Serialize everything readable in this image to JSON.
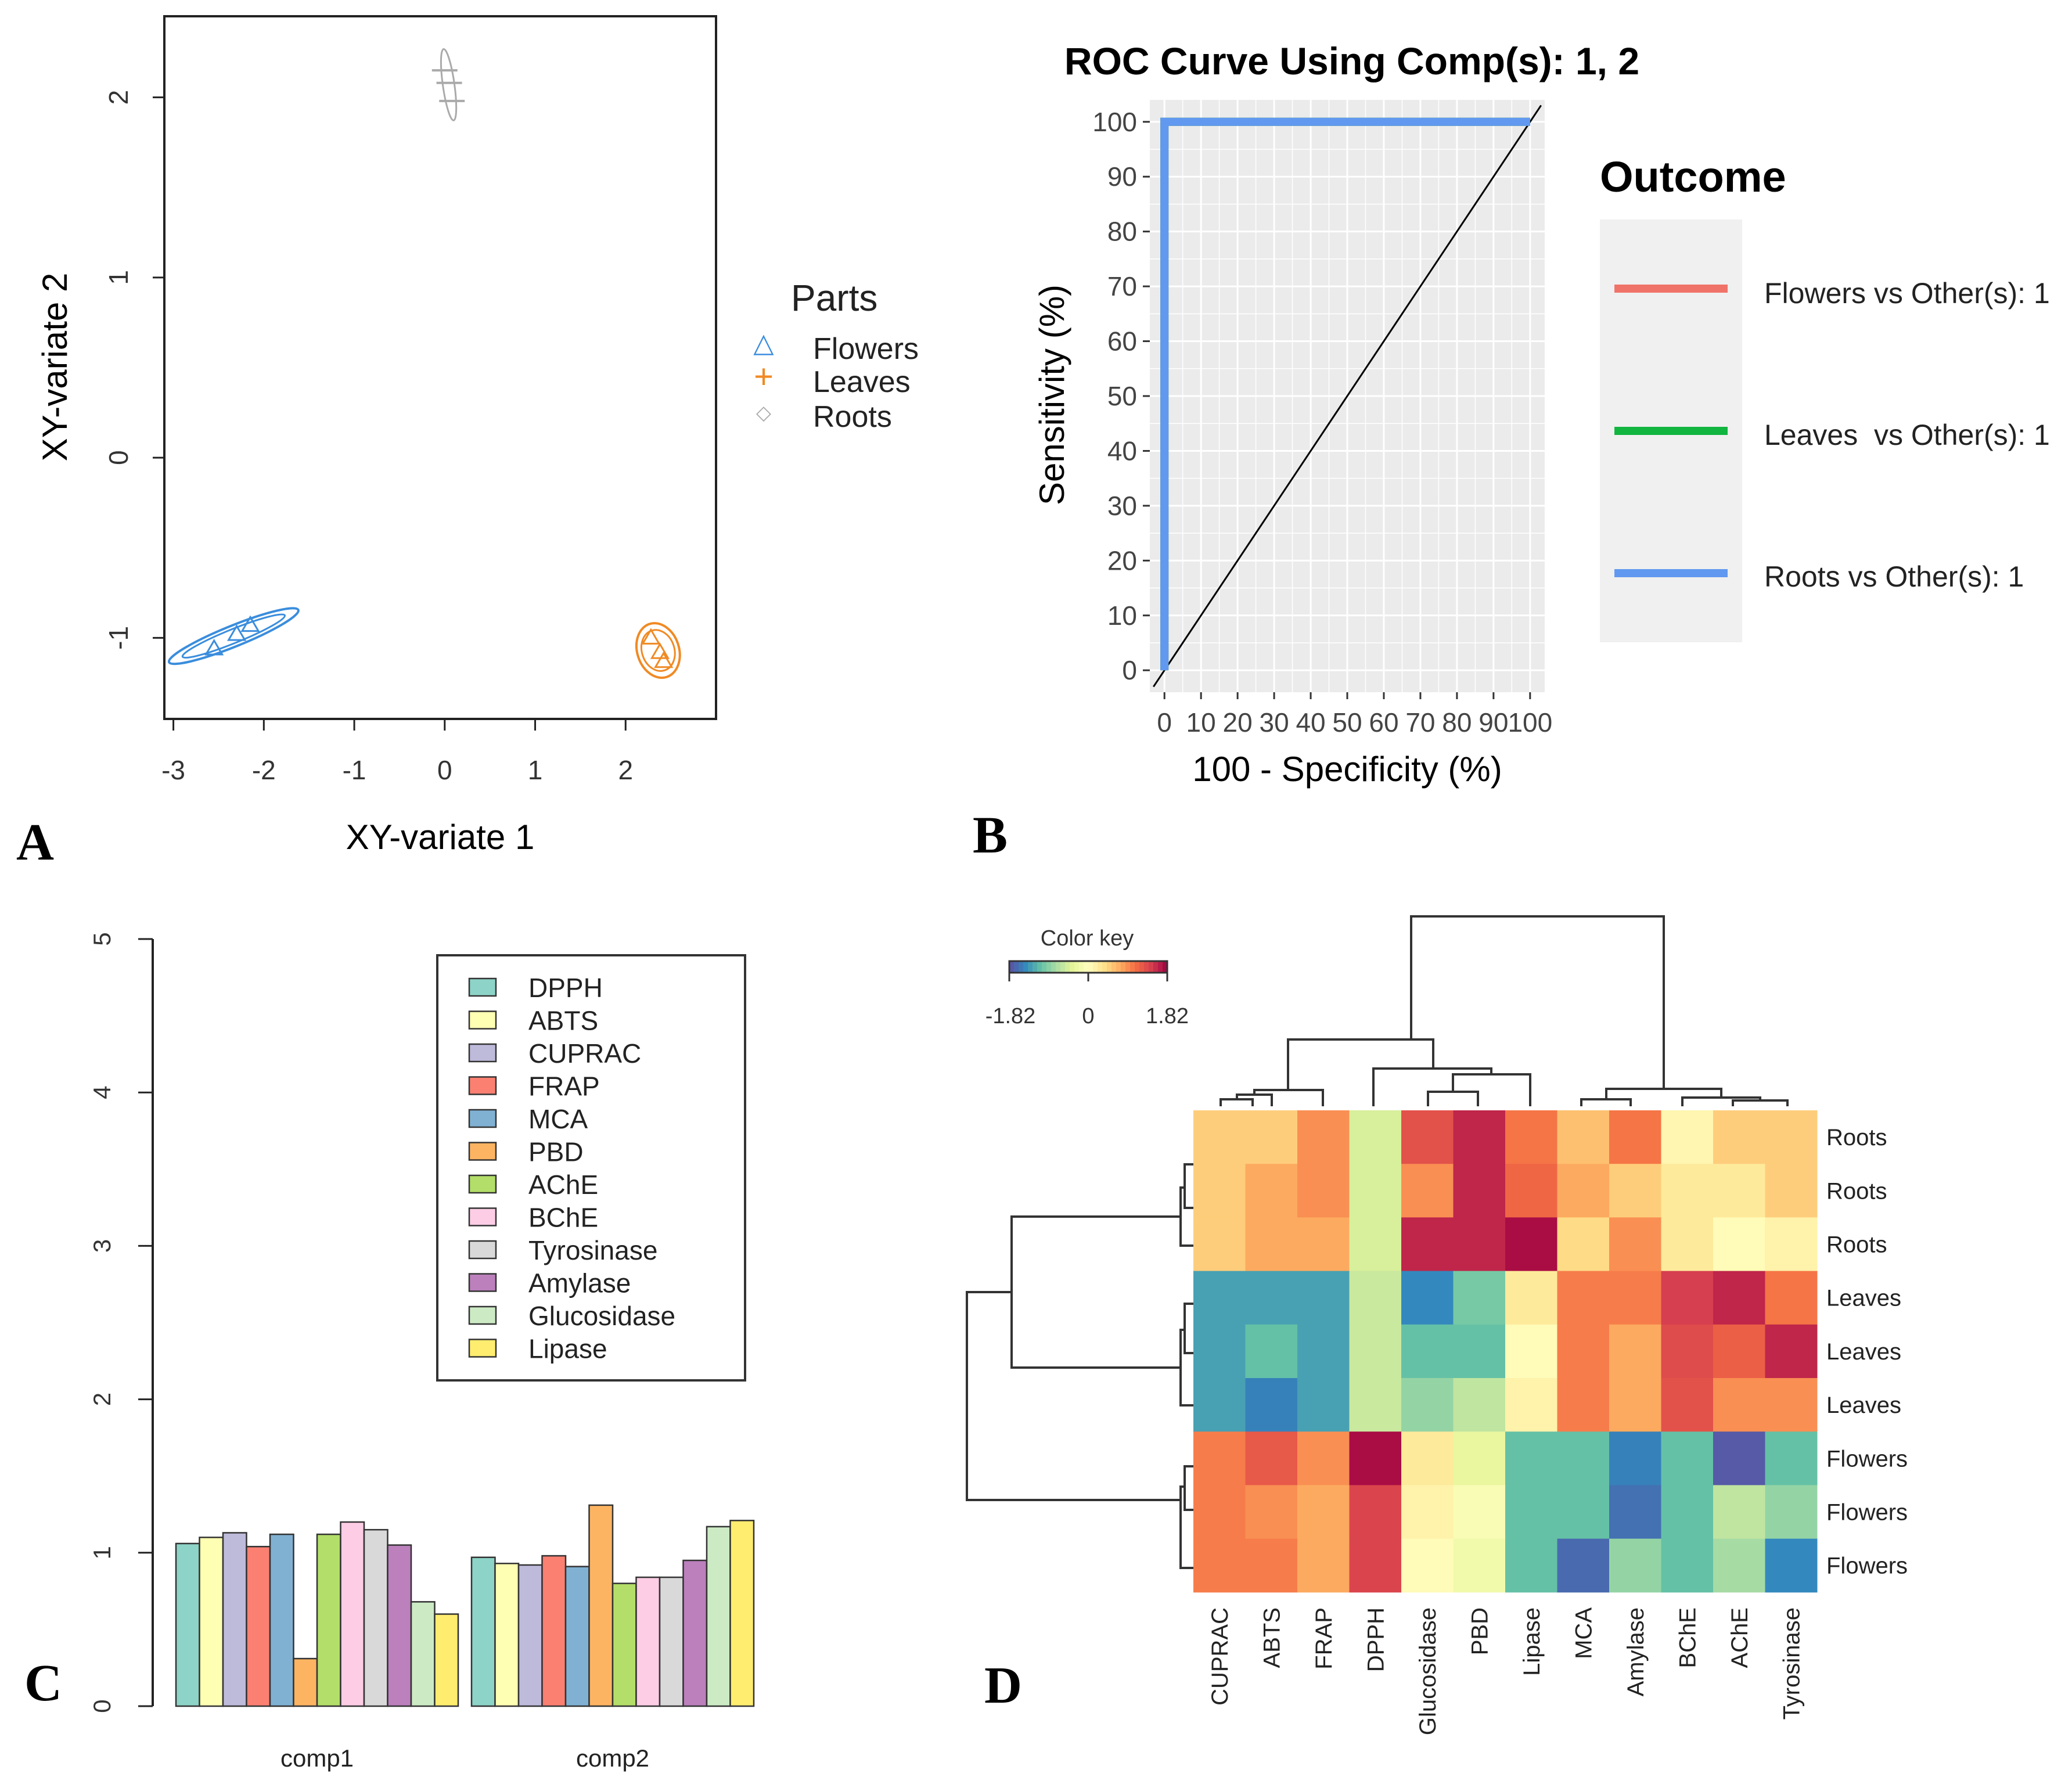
{
  "panels": {
    "a": "A",
    "b": "B",
    "c": "C",
    "d": "D"
  },
  "chart_data": [
    {
      "type": "scatter",
      "xlabel": "XY-variate 1",
      "ylabel": "XY-variate 2",
      "xlim": [
        -3.1,
        3
      ],
      "ylim": [
        -1.45,
        2.45
      ],
      "xticks": [
        "-3",
        "-2",
        "-1",
        "0",
        "1",
        "2"
      ],
      "yticks": [
        "-1",
        "0",
        "1",
        "2"
      ],
      "legend": {
        "title": "Parts",
        "position": "right",
        "entries": [
          {
            "label": "Flowers",
            "symbol": "△",
            "color": "#3a8ddd"
          },
          {
            "label": "Leaves",
            "symbol": "+",
            "color": "#f08a24"
          },
          {
            "label": "Roots",
            "symbol": "◇",
            "color": "#aaaaaa"
          }
        ]
      },
      "series": [
        {
          "name": "Flowers",
          "color": "#3a8ddd",
          "points": [
            [
              -2.55,
              -1.06
            ],
            [
              -2.3,
              -0.98
            ],
            [
              -2.15,
              -0.93
            ]
          ]
        },
        {
          "name": "Leaves",
          "color": "#f08a24",
          "points": [
            [
              2.28,
              -1.0
            ],
            [
              2.38,
              -1.08
            ],
            [
              2.42,
              -1.13
            ]
          ]
        },
        {
          "name": "Roots",
          "color": "#aaaaaa",
          "points": [
            [
              0.0,
              2.15
            ],
            [
              0.05,
              2.08
            ],
            [
              0.08,
              1.98
            ]
          ]
        }
      ]
    },
    {
      "type": "line",
      "title": "ROC Curve Using Comp(s): 1, 2",
      "xlabel": "100 - Specificity (%)",
      "ylabel": "Sensitivity (%)",
      "xlim": [
        -4,
        104
      ],
      "ylim": [
        -4,
        104
      ],
      "xticks": [
        "0",
        "10",
        "20",
        "30",
        "40",
        "50",
        "60",
        "70",
        "80",
        "90",
        "100"
      ],
      "yticks": [
        "0",
        "10",
        "20",
        "30",
        "40",
        "50",
        "60",
        "70",
        "80",
        "90",
        "100"
      ],
      "legend": {
        "title": "Outcome",
        "position": "right"
      },
      "series": [
        {
          "name": "Flowers vs Other(s): 1",
          "color": "#f0736a",
          "x": [
            0,
            0,
            100
          ],
          "y": [
            0,
            100,
            100
          ]
        },
        {
          "name": "Leaves  vs Other(s): 1",
          "color": "#12b540",
          "x": [
            0,
            0,
            100
          ],
          "y": [
            0,
            100,
            100
          ]
        },
        {
          "name": "Roots vs Other(s): 1",
          "color": "#6199f0",
          "x": [
            0,
            0,
            100
          ],
          "y": [
            0,
            100,
            100
          ]
        }
      ],
      "reference_line": {
        "x": [
          0,
          100
        ],
        "y": [
          0,
          100
        ]
      }
    },
    {
      "type": "bar",
      "categories": [
        "comp1",
        "comp2"
      ],
      "ylim": [
        0,
        5
      ],
      "yticks": [
        "0",
        "1",
        "2",
        "3",
        "4",
        "5"
      ],
      "legend": {
        "position": "top-right"
      },
      "series": [
        {
          "name": "DPPH",
          "color": "#8dd3c7",
          "values": [
            1.06,
            0.97
          ]
        },
        {
          "name": "ABTS",
          "color": "#ffffb3",
          "values": [
            1.1,
            0.93
          ]
        },
        {
          "name": "CUPRAC",
          "color": "#bebada",
          "values": [
            1.13,
            0.92
          ]
        },
        {
          "name": "FRAP",
          "color": "#fb8072",
          "values": [
            1.04,
            0.98
          ]
        },
        {
          "name": "MCA",
          "color": "#80b1d3",
          "values": [
            1.12,
            0.91
          ]
        },
        {
          "name": "PBD",
          "color": "#fdb462",
          "values": [
            0.31,
            1.31
          ]
        },
        {
          "name": "AChE",
          "color": "#b3de69",
          "values": [
            1.12,
            0.8
          ]
        },
        {
          "name": "BChE",
          "color": "#fccde5",
          "values": [
            1.2,
            0.84
          ]
        },
        {
          "name": "Tyrosinase",
          "color": "#d9d9d9",
          "values": [
            1.15,
            0.84
          ]
        },
        {
          "name": "Amylase",
          "color": "#bc80bd",
          "values": [
            1.05,
            0.95
          ]
        },
        {
          "name": "Glucosidase",
          "color": "#ccebc5",
          "values": [
            0.68,
            1.17
          ]
        },
        {
          "name": "Lipase",
          "color": "#ffed6f",
          "values": [
            0.6,
            1.21
          ]
        }
      ]
    },
    {
      "type": "heatmap",
      "color_key": {
        "title": "Color key",
        "min_label": "-1.82",
        "mid_label": "0",
        "max_label": "1.82",
        "min": -1.82,
        "max": 1.82
      },
      "columns": [
        "CUPRAC",
        "ABTS",
        "FRAP",
        "DPPH",
        "Glucosidase",
        "PBD",
        "Lipase",
        "MCA",
        "Amylase",
        "BChE",
        "AChE",
        "Tyrosinase"
      ],
      "rows": [
        "Roots",
        "Roots",
        "Roots",
        "Leaves",
        "Leaves",
        "Leaves",
        "Flowers",
        "Flowers",
        "Flowers"
      ],
      "values": [
        [
          0.5,
          0.5,
          0.9,
          -0.45,
          1.3,
          1.6,
          1.05,
          0.6,
          1.05,
          0.1,
          0.5,
          0.5
        ],
        [
          0.5,
          0.75,
          0.9,
          -0.45,
          0.9,
          1.6,
          1.15,
          0.75,
          0.5,
          0.25,
          0.25,
          0.5
        ],
        [
          0.5,
          0.75,
          0.75,
          -0.45,
          1.6,
          1.6,
          1.75,
          0.4,
          0.9,
          0.25,
          0.05,
          0.15
        ],
        [
          -1.3,
          -1.3,
          -1.3,
          -0.55,
          -1.45,
          -1.0,
          0.25,
          1.0,
          1.0,
          1.45,
          1.6,
          1.05
        ],
        [
          -1.3,
          -1.1,
          -1.3,
          -0.55,
          -1.1,
          -1.1,
          0.05,
          1.0,
          0.75,
          1.35,
          1.2,
          1.6
        ],
        [
          -1.3,
          -1.5,
          -1.3,
          -0.55,
          -0.85,
          -0.6,
          0.15,
          1.0,
          0.75,
          1.3,
          0.9,
          0.9
        ],
        [
          1.0,
          1.25,
          0.9,
          1.75,
          0.25,
          -0.3,
          -1.1,
          -1.1,
          -1.5,
          -1.1,
          -1.75,
          -1.1
        ],
        [
          1.0,
          0.9,
          0.75,
          1.4,
          0.15,
          -0.1,
          -1.1,
          -1.1,
          -1.6,
          -1.1,
          -0.6,
          -0.85
        ],
        [
          1.0,
          1.0,
          0.75,
          1.4,
          0.05,
          -0.2,
          -1.1,
          -1.65,
          -0.85,
          -1.1,
          -0.75,
          -1.45
        ]
      ]
    }
  ]
}
